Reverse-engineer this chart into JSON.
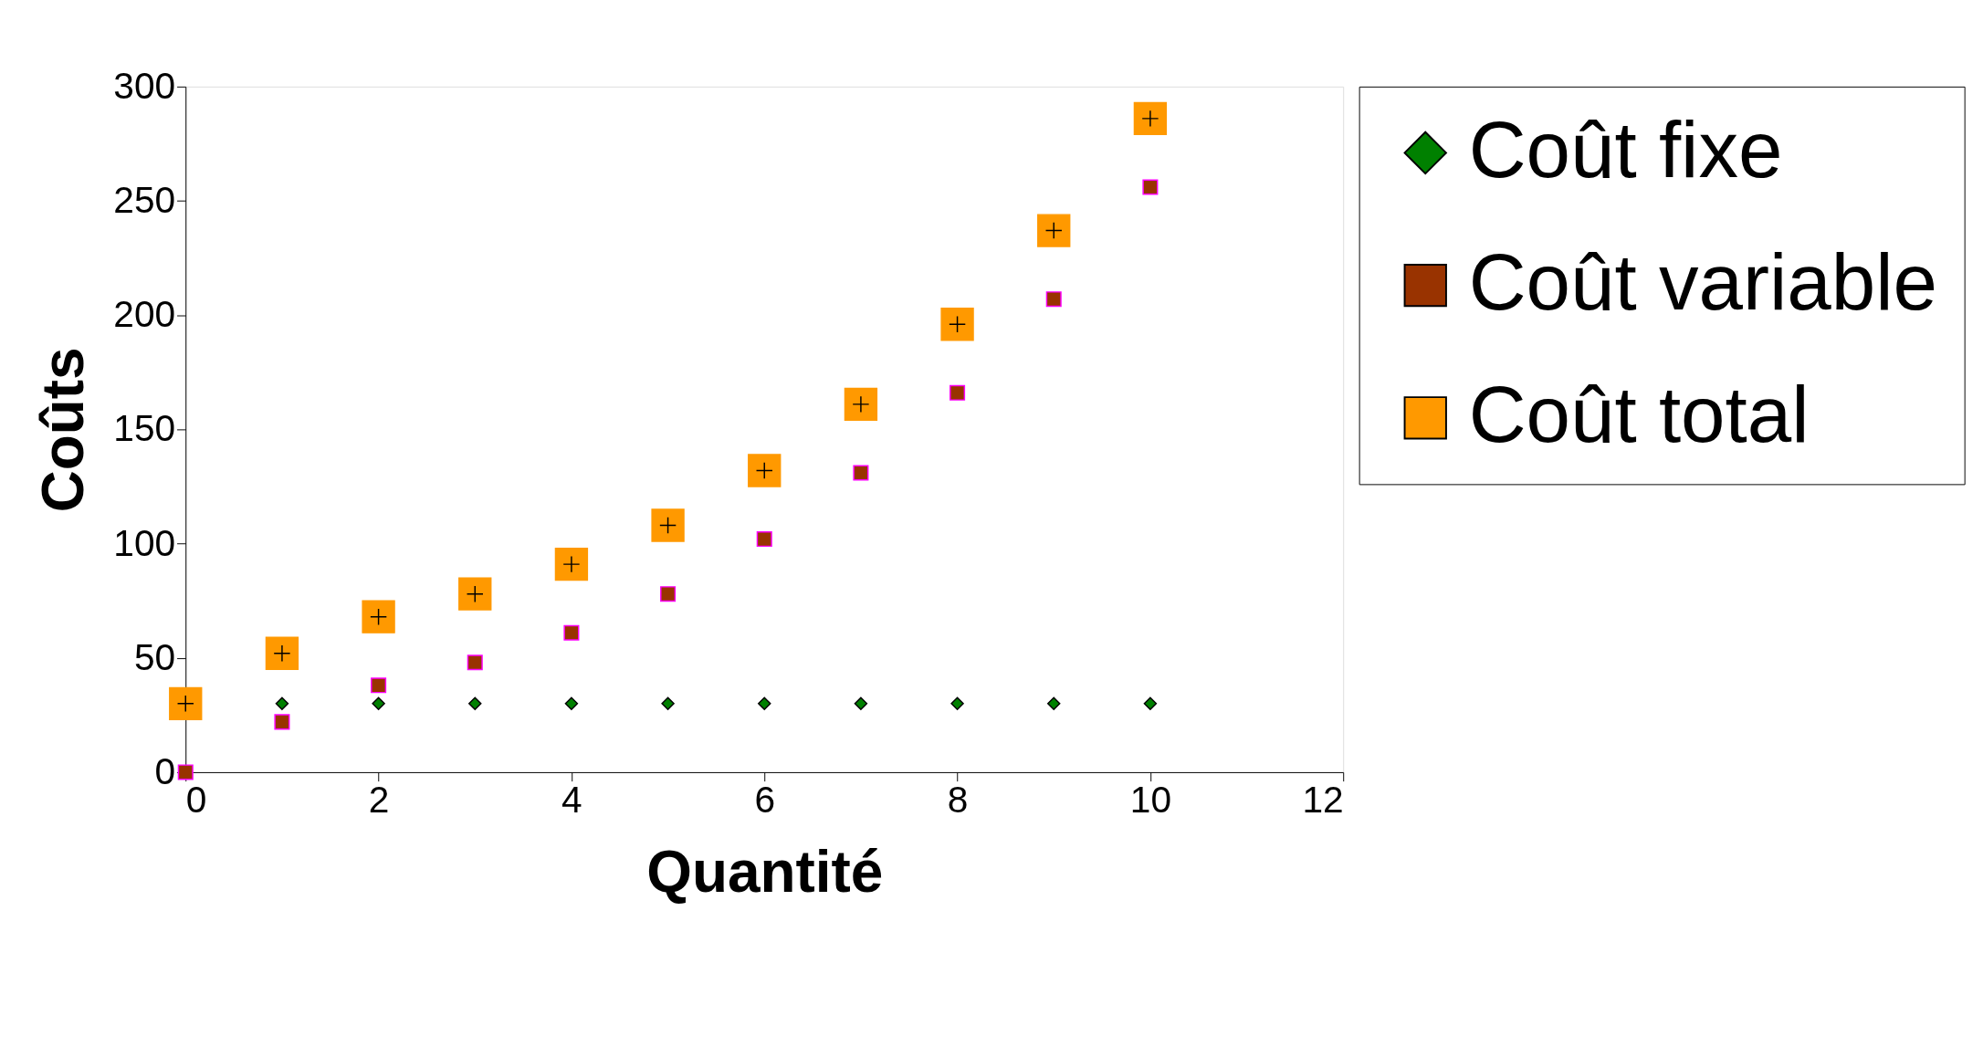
{
  "chart_data": {
    "type": "scatter",
    "xlabel": "Quantité",
    "ylabel": "Coûts",
    "x": [
      0,
      1,
      2,
      3,
      4,
      5,
      6,
      7,
      8,
      9,
      10
    ],
    "series": [
      {
        "name": "Coût fixe",
        "color": "#008000",
        "marker": "diamond",
        "values": [
          null,
          30,
          30,
          30,
          30,
          30,
          30,
          30,
          30,
          30,
          30
        ]
      },
      {
        "name": "Coût variable",
        "color": "#993300",
        "marker": "square",
        "values": [
          0,
          22,
          38,
          48,
          61,
          78,
          102,
          131,
          166,
          207,
          256
        ]
      },
      {
        "name": "Coût total",
        "color": "#ff9900",
        "marker": "square",
        "values": [
          30,
          52,
          68,
          78,
          91,
          108,
          132,
          161,
          196,
          237,
          286
        ]
      }
    ],
    "xlim": [
      0,
      12
    ],
    "xticks": [
      0,
      2,
      4,
      6,
      8,
      10,
      12
    ],
    "ylim": [
      0,
      300
    ],
    "yticks": [
      0,
      50,
      100,
      150,
      200,
      250,
      300
    ],
    "grid": false,
    "legend": "right"
  }
}
